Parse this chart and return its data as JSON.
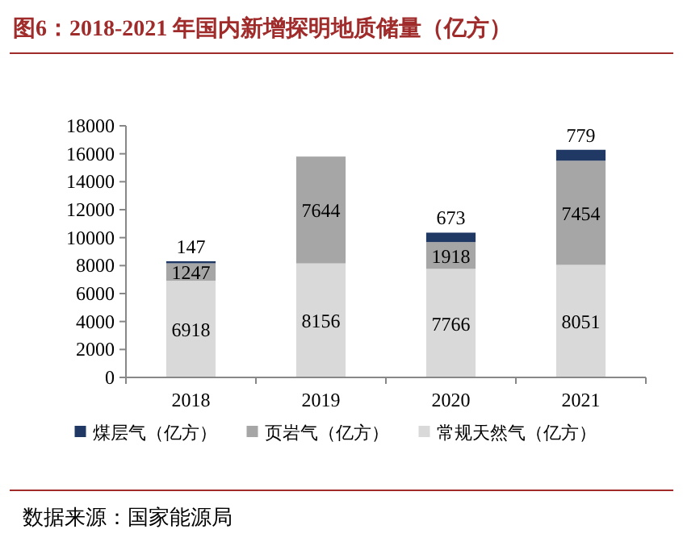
{
  "chart_data": {
    "type": "bar",
    "stacked": true,
    "title": "图6：2018-2021 年国内新增探明地质储量（亿方）",
    "categories": [
      "2018",
      "2019",
      "2020",
      "2021"
    ],
    "series": [
      {
        "name": "常规天然气（亿方）",
        "color": "#d9d9d9",
        "values": [
          6918,
          8156,
          7766,
          8051
        ]
      },
      {
        "name": "页岩气（亿方）",
        "color": "#a6a6a6",
        "values": [
          1247,
          7644,
          1918,
          7454
        ]
      },
      {
        "name": "煤层气（亿方）",
        "color": "#1f3864",
        "values": [
          147,
          null,
          673,
          779
        ]
      }
    ],
    "ylim": [
      0,
      18000
    ],
    "yticks": [
      0,
      2000,
      4000,
      6000,
      8000,
      10000,
      12000,
      14000,
      16000,
      18000
    ],
    "data_labels": true,
    "legend": "bottom",
    "grid": false,
    "annotations": [
      "数据来源：国家能源局"
    ]
  }
}
